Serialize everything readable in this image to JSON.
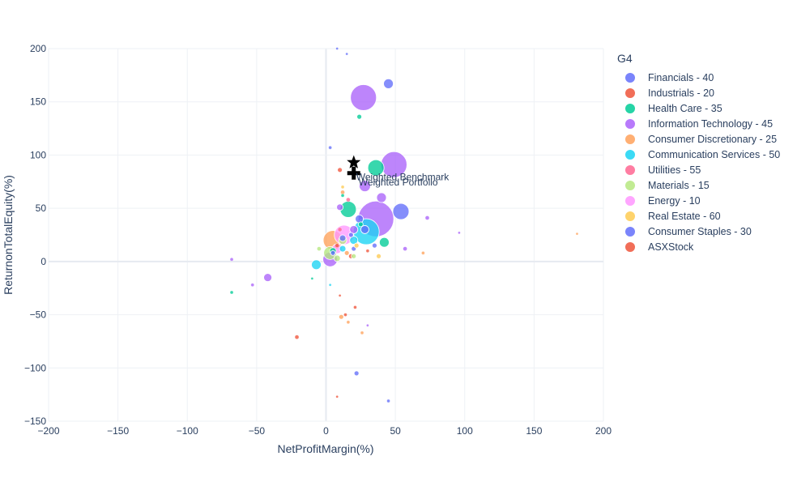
{
  "chart_data": {
    "type": "scatter",
    "title": "",
    "xlabel": "NetProfitMargin(%)",
    "ylabel": "ReturnonTotalEquity(%)",
    "xlim": [
      -200,
      200
    ],
    "ylim": [
      -150,
      200
    ],
    "x_ticks": [
      -200,
      -150,
      -100,
      -50,
      0,
      50,
      100,
      150,
      200
    ],
    "y_ticks": [
      -150,
      -100,
      -50,
      0,
      50,
      100,
      150,
      200
    ],
    "x_tick_labels": [
      "−200",
      "−150",
      "−100",
      "−50",
      "0",
      "50",
      "100",
      "150",
      "200"
    ],
    "y_tick_labels": [
      "−150",
      "−100",
      "−50",
      "0",
      "50",
      "100",
      "150",
      "200"
    ],
    "grid": true,
    "legend_position": "right",
    "legend_title": "G4",
    "series": [
      {
        "name": "Financials - 40",
        "color": "#636efa",
        "points": [
          {
            "x": 45,
            "y": 167,
            "s": 6
          },
          {
            "x": 54,
            "y": 47,
            "s": 10
          },
          {
            "x": 22,
            "y": -105,
            "s": 3
          },
          {
            "x": 8,
            "y": 200,
            "s": 1.5
          },
          {
            "x": 15,
            "y": 195,
            "s": 1.5
          },
          {
            "x": 28,
            "y": 30,
            "s": 5
          },
          {
            "x": 12,
            "y": 22,
            "s": 4
          },
          {
            "x": 20,
            "y": 12,
            "s": 3
          },
          {
            "x": 5,
            "y": 8,
            "s": 3
          },
          {
            "x": 35,
            "y": 15,
            "s": 3
          },
          {
            "x": 45,
            "y": -131,
            "s": 2
          }
        ]
      },
      {
        "name": "Industrials - 20",
        "color": "#ef553b",
        "points": [
          {
            "x": 10,
            "y": 86,
            "s": 3
          },
          {
            "x": -21,
            "y": -71,
            "s": 2.5
          },
          {
            "x": 21,
            "y": -43,
            "s": 2
          },
          {
            "x": 14,
            "y": -50,
            "s": 2
          },
          {
            "x": 18,
            "y": 5,
            "s": 3
          },
          {
            "x": 8,
            "y": 15,
            "s": 2.5
          },
          {
            "x": 30,
            "y": 10,
            "s": 2
          },
          {
            "x": 10,
            "y": -32,
            "s": 1.5
          },
          {
            "x": 8,
            "y": -127,
            "s": 1.5
          }
        ]
      },
      {
        "name": "Health Care - 35",
        "color": "#00cc96",
        "points": [
          {
            "x": 24,
            "y": 136,
            "s": 3
          },
          {
            "x": 36,
            "y": 88,
            "s": 10
          },
          {
            "x": 16,
            "y": 49,
            "s": 10
          },
          {
            "x": 42,
            "y": 18,
            "s": 6
          },
          {
            "x": -68,
            "y": -29,
            "s": 2
          },
          {
            "x": 5,
            "y": 10,
            "s": 4
          },
          {
            "x": -10,
            "y": -16,
            "s": 1.5
          },
          {
            "x": 25,
            "y": 35,
            "s": 3
          },
          {
            "x": 12,
            "y": 62,
            "s": 2
          }
        ]
      },
      {
        "name": "Information Technology - 45",
        "color": "#ab63fa",
        "points": [
          {
            "x": 27,
            "y": 154,
            "s": 16
          },
          {
            "x": 49,
            "y": 91,
            "s": 16
          },
          {
            "x": 36,
            "y": 40,
            "s": 22
          },
          {
            "x": 40,
            "y": 60,
            "s": 6
          },
          {
            "x": 28,
            "y": 71,
            "s": 7
          },
          {
            "x": 3,
            "y": 2,
            "s": 9
          },
          {
            "x": -42,
            "y": -15,
            "s": 5
          },
          {
            "x": -53,
            "y": -22,
            "s": 2
          },
          {
            "x": 73,
            "y": 41,
            "s": 2.5
          },
          {
            "x": 57,
            "y": 12,
            "s": 2.5
          },
          {
            "x": 96,
            "y": 27,
            "s": 1.5
          },
          {
            "x": 10,
            "y": 51,
            "s": 4
          },
          {
            "x": -68,
            "y": 2,
            "s": 2
          },
          {
            "x": 20,
            "y": 30,
            "s": 5
          },
          {
            "x": 30,
            "y": -60,
            "s": 1.5
          }
        ]
      },
      {
        "name": "Consumer Discretionary - 25",
        "color": "#ffa15a",
        "points": [
          {
            "x": 5,
            "y": 20,
            "s": 12
          },
          {
            "x": 11,
            "y": -52,
            "s": 3
          },
          {
            "x": 26,
            "y": -67,
            "s": 2
          },
          {
            "x": 12,
            "y": 65,
            "s": 2.5
          },
          {
            "x": 70,
            "y": 8,
            "s": 2
          },
          {
            "x": 181,
            "y": 26,
            "s": 1.5
          },
          {
            "x": 16,
            "y": -57,
            "s": 2
          },
          {
            "x": 15,
            "y": 8,
            "s": 3
          }
        ]
      },
      {
        "name": "Communication Services - 50",
        "color": "#19d3f3",
        "points": [
          {
            "x": 29,
            "y": 28,
            "s": 16
          },
          {
            "x": -7,
            "y": -3,
            "s": 6
          },
          {
            "x": 20,
            "y": 20,
            "s": 5
          },
          {
            "x": 3,
            "y": -22,
            "s": 1.5
          },
          {
            "x": 12,
            "y": 12,
            "s": 4
          }
        ]
      },
      {
        "name": "Utilities - 55",
        "color": "#ff6692",
        "points": [
          {
            "x": 16,
            "y": 58,
            "s": 2.5
          },
          {
            "x": 10,
            "y": 30,
            "s": 2.5
          }
        ]
      },
      {
        "name": "Materials - 15",
        "color": "#b6e880",
        "points": [
          {
            "x": 3,
            "y": 8,
            "s": 8
          },
          {
            "x": 12,
            "y": 20,
            "s": 5
          },
          {
            "x": 8,
            "y": 3,
            "s": 4
          },
          {
            "x": -5,
            "y": 12,
            "s": 2.5
          },
          {
            "x": 20,
            "y": 5,
            "s": 3
          }
        ]
      },
      {
        "name": "Energy - 10",
        "color": "#ff97ff",
        "points": [
          {
            "x": 13,
            "y": 25,
            "s": 12
          },
          {
            "x": 8,
            "y": 12,
            "s": 6
          }
        ]
      },
      {
        "name": "Real Estate - 60",
        "color": "#fecb52",
        "points": [
          {
            "x": 38,
            "y": 5,
            "s": 3
          },
          {
            "x": 12,
            "y": 70,
            "s": 2
          },
          {
            "x": 22,
            "y": 15,
            "s": 3
          }
        ]
      },
      {
        "name": "Consumer Staples - 30",
        "color": "#636efa",
        "points": [
          {
            "x": 24,
            "y": 40,
            "s": 5
          },
          {
            "x": 3,
            "y": 107,
            "s": 2
          },
          {
            "x": 18,
            "y": 25,
            "s": 3
          }
        ]
      },
      {
        "name": "ASXStock",
        "color": "#ef553b",
        "points": []
      }
    ],
    "annotations": [
      {
        "text": "Weighted Benchmark",
        "x": 20,
        "y": 93
      },
      {
        "text": "Weighted Portfolio",
        "x": 20,
        "y": 83
      }
    ]
  }
}
